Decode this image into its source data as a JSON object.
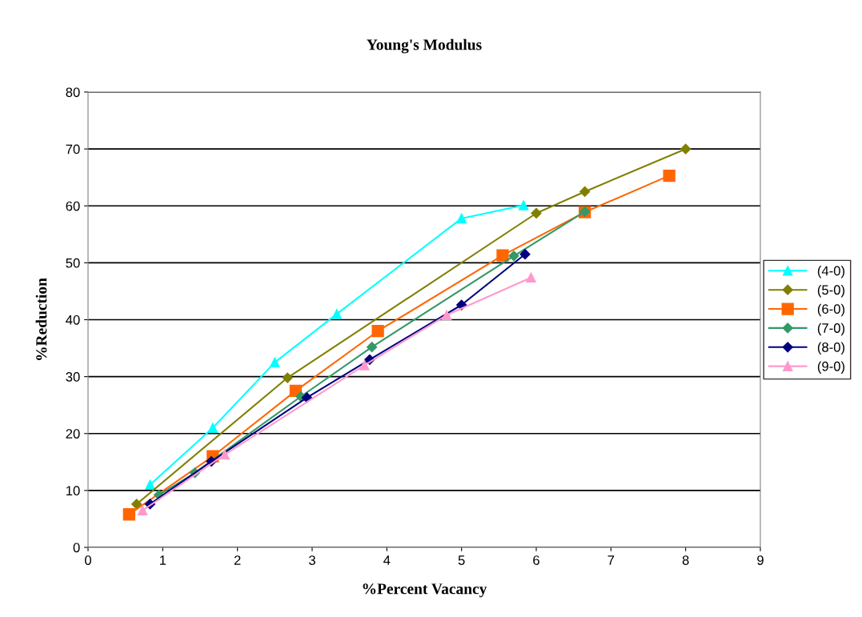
{
  "chart_data": {
    "type": "line",
    "title": "Young's Modulus",
    "xlabel": "%Percent Vacancy",
    "ylabel": "%Reduction",
    "xlim": [
      0,
      9
    ],
    "xticks": [
      0,
      1,
      2,
      3,
      4,
      5,
      6,
      7,
      8,
      9
    ],
    "ylim": [
      0,
      80
    ],
    "yticks": [
      0,
      10,
      20,
      30,
      40,
      50,
      60,
      70,
      80
    ],
    "grid": "y",
    "legend": "right",
    "line_style": "solid",
    "series": [
      {
        "name": "(4-0)",
        "color": "#00ffff",
        "marker": "triangle",
        "x": [
          0.83,
          1.67,
          2.5,
          3.33,
          5.0,
          5.83
        ],
        "values": [
          11,
          21,
          32.5,
          41,
          57.8,
          60.1
        ]
      },
      {
        "name": "(5-0)",
        "color": "#808000",
        "marker": "diamond",
        "x": [
          0.65,
          2.67,
          6.0,
          6.65,
          8.0
        ],
        "values": [
          7.6,
          29.8,
          58.7,
          62.5,
          70
        ]
      },
      {
        "name": "(6-0)",
        "color": "#ff6600",
        "marker": "square",
        "x": [
          0.55,
          1.67,
          2.78,
          3.88,
          5.55,
          6.65,
          7.78
        ],
        "values": [
          5.8,
          16,
          27.5,
          38,
          51.3,
          58.9,
          65.3
        ]
      },
      {
        "name": "(7-0)",
        "color": "#339966",
        "marker": "diamond",
        "x": [
          0.95,
          1.43,
          2.85,
          3.8,
          5.7,
          6.65
        ],
        "values": [
          9.2,
          13.1,
          26.5,
          35.2,
          51.2,
          59
        ]
      },
      {
        "name": "(8-0)",
        "color": "#000080",
        "marker": "diamond",
        "x": [
          0.83,
          1.65,
          2.93,
          3.77,
          5.0,
          5.85
        ],
        "values": [
          7.6,
          15.1,
          26.3,
          33,
          42.6,
          51.5
        ]
      },
      {
        "name": "(9-0)",
        "color": "#ff99cc",
        "marker": "triangle",
        "x": [
          0.73,
          1.83,
          3.7,
          4.8,
          5.93
        ],
        "values": [
          6.5,
          16.3,
          32,
          40.8,
          47.4
        ]
      }
    ]
  }
}
